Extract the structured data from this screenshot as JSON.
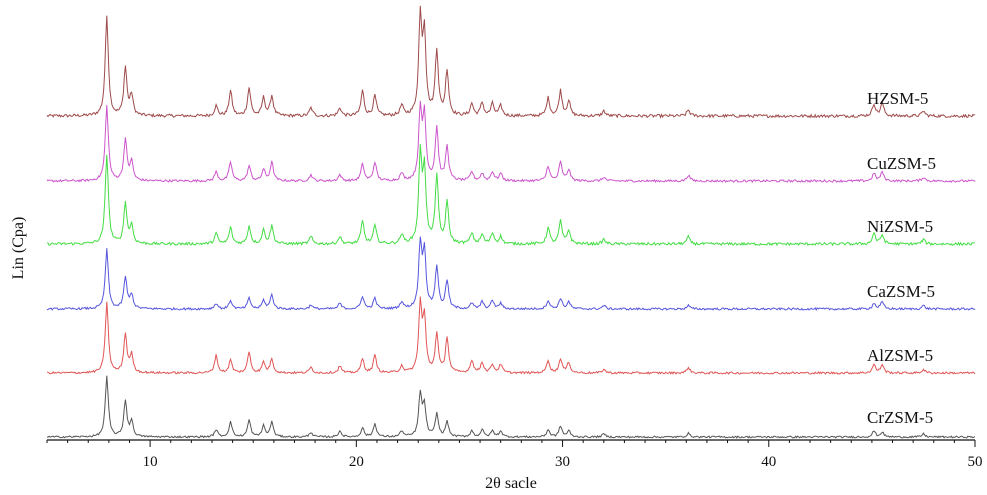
{
  "chart_data": {
    "type": "line",
    "title": "",
    "xlabel": "2θ sacle",
    "ylabel": "Lin (Cpa)",
    "xlim": [
      5,
      50
    ],
    "xticks": [
      10,
      20,
      30,
      40,
      50
    ],
    "yticks_shown": false,
    "grid": false,
    "legend": "inline labels at right end of each trace",
    "offset_stacked": true,
    "noise_level": 0.05,
    "series": [
      {
        "name": "HZSM-5",
        "color": "#9e4a4a",
        "baseline": 0.0,
        "peaks": [
          [
            7.9,
            1.0
          ],
          [
            8.8,
            0.48
          ],
          [
            9.1,
            0.2
          ],
          [
            13.2,
            0.1
          ],
          [
            13.9,
            0.25
          ],
          [
            14.8,
            0.28
          ],
          [
            15.5,
            0.18
          ],
          [
            15.9,
            0.2
          ],
          [
            17.8,
            0.08
          ],
          [
            19.2,
            0.08
          ],
          [
            20.3,
            0.25
          ],
          [
            20.9,
            0.2
          ],
          [
            22.2,
            0.1
          ],
          [
            23.1,
            0.95
          ],
          [
            23.3,
            0.8
          ],
          [
            23.9,
            0.65
          ],
          [
            24.4,
            0.45
          ],
          [
            25.6,
            0.12
          ],
          [
            26.1,
            0.13
          ],
          [
            26.6,
            0.12
          ],
          [
            27.0,
            0.1
          ],
          [
            29.3,
            0.18
          ],
          [
            29.9,
            0.25
          ],
          [
            30.3,
            0.15
          ],
          [
            32.0,
            0.05
          ],
          [
            36.1,
            0.06
          ],
          [
            45.1,
            0.12
          ],
          [
            45.5,
            0.13
          ],
          [
            47.5,
            0.05
          ]
        ]
      },
      {
        "name": "CuZSM-5",
        "color": "#cc55cc",
        "baseline": 0.0,
        "peaks": [
          [
            7.9,
            1.0
          ],
          [
            8.8,
            0.55
          ],
          [
            9.1,
            0.25
          ],
          [
            13.2,
            0.12
          ],
          [
            13.9,
            0.25
          ],
          [
            14.8,
            0.2
          ],
          [
            15.5,
            0.15
          ],
          [
            15.9,
            0.25
          ],
          [
            17.8,
            0.08
          ],
          [
            19.2,
            0.08
          ],
          [
            20.3,
            0.22
          ],
          [
            20.9,
            0.25
          ],
          [
            22.2,
            0.1
          ],
          [
            23.1,
            0.9
          ],
          [
            23.3,
            0.85
          ],
          [
            23.9,
            0.7
          ],
          [
            24.4,
            0.45
          ],
          [
            25.6,
            0.12
          ],
          [
            26.1,
            0.1
          ],
          [
            26.6,
            0.12
          ],
          [
            27.0,
            0.1
          ],
          [
            29.3,
            0.2
          ],
          [
            29.9,
            0.25
          ],
          [
            30.3,
            0.15
          ],
          [
            32.0,
            0.05
          ],
          [
            36.1,
            0.08
          ],
          [
            45.1,
            0.1
          ],
          [
            45.5,
            0.12
          ],
          [
            47.5,
            0.05
          ]
        ]
      },
      {
        "name": "NiZSM-5",
        "color": "#44dd44",
        "baseline": 0.0,
        "peaks": [
          [
            7.9,
            1.0
          ],
          [
            8.8,
            0.45
          ],
          [
            9.1,
            0.2
          ],
          [
            13.2,
            0.12
          ],
          [
            13.9,
            0.18
          ],
          [
            14.8,
            0.2
          ],
          [
            15.5,
            0.15
          ],
          [
            15.9,
            0.2
          ],
          [
            17.8,
            0.08
          ],
          [
            19.2,
            0.08
          ],
          [
            20.3,
            0.25
          ],
          [
            20.9,
            0.2
          ],
          [
            22.2,
            0.1
          ],
          [
            23.1,
            0.95
          ],
          [
            23.3,
            0.8
          ],
          [
            23.9,
            0.75
          ],
          [
            24.4,
            0.45
          ],
          [
            25.6,
            0.12
          ],
          [
            26.1,
            0.1
          ],
          [
            26.6,
            0.12
          ],
          [
            27.0,
            0.08
          ],
          [
            29.3,
            0.18
          ],
          [
            29.9,
            0.25
          ],
          [
            30.3,
            0.15
          ],
          [
            32.0,
            0.05
          ],
          [
            36.1,
            0.08
          ],
          [
            45.1,
            0.12
          ],
          [
            45.5,
            0.1
          ],
          [
            47.5,
            0.05
          ]
        ]
      },
      {
        "name": "CaZSM-5",
        "color": "#5555dd",
        "baseline": 0.0,
        "peaks": [
          [
            7.9,
            0.85
          ],
          [
            8.8,
            0.45
          ],
          [
            9.1,
            0.2
          ],
          [
            13.2,
            0.08
          ],
          [
            13.9,
            0.12
          ],
          [
            14.8,
            0.15
          ],
          [
            15.5,
            0.12
          ],
          [
            15.9,
            0.2
          ],
          [
            17.8,
            0.06
          ],
          [
            19.2,
            0.08
          ],
          [
            20.3,
            0.18
          ],
          [
            20.9,
            0.15
          ],
          [
            22.2,
            0.1
          ],
          [
            23.1,
            0.9
          ],
          [
            23.3,
            0.8
          ],
          [
            23.9,
            0.6
          ],
          [
            24.4,
            0.4
          ],
          [
            25.6,
            0.08
          ],
          [
            26.1,
            0.1
          ],
          [
            26.6,
            0.12
          ],
          [
            27.0,
            0.08
          ],
          [
            29.3,
            0.12
          ],
          [
            29.9,
            0.15
          ],
          [
            30.3,
            0.1
          ],
          [
            32.0,
            0.05
          ],
          [
            36.1,
            0.05
          ],
          [
            45.1,
            0.08
          ],
          [
            45.5,
            0.1
          ],
          [
            47.5,
            0.05
          ]
        ]
      },
      {
        "name": "AlZSM-5",
        "color": "#e05555",
        "baseline": 0.0,
        "peaks": [
          [
            7.9,
            1.0
          ],
          [
            8.8,
            0.55
          ],
          [
            9.1,
            0.25
          ],
          [
            13.2,
            0.25
          ],
          [
            13.9,
            0.18
          ],
          [
            14.8,
            0.3
          ],
          [
            15.5,
            0.15
          ],
          [
            15.9,
            0.2
          ],
          [
            17.8,
            0.08
          ],
          [
            19.2,
            0.1
          ],
          [
            20.3,
            0.2
          ],
          [
            20.9,
            0.25
          ],
          [
            22.2,
            0.1
          ],
          [
            23.1,
            0.95
          ],
          [
            23.3,
            0.75
          ],
          [
            23.9,
            0.55
          ],
          [
            24.4,
            0.5
          ],
          [
            25.6,
            0.18
          ],
          [
            26.1,
            0.15
          ],
          [
            26.6,
            0.12
          ],
          [
            27.0,
            0.12
          ],
          [
            29.3,
            0.18
          ],
          [
            29.9,
            0.2
          ],
          [
            30.3,
            0.15
          ],
          [
            32.0,
            0.05
          ],
          [
            36.1,
            0.08
          ],
          [
            45.1,
            0.12
          ],
          [
            45.5,
            0.12
          ],
          [
            47.5,
            0.05
          ]
        ]
      },
      {
        "name": "CrZSM-5",
        "color": "#555555",
        "baseline": 0.0,
        "peaks": [
          [
            7.9,
            1.0
          ],
          [
            8.8,
            0.6
          ],
          [
            9.1,
            0.25
          ],
          [
            13.2,
            0.12
          ],
          [
            13.9,
            0.25
          ],
          [
            14.8,
            0.28
          ],
          [
            15.5,
            0.18
          ],
          [
            15.9,
            0.25
          ],
          [
            17.8,
            0.08
          ],
          [
            19.2,
            0.1
          ],
          [
            20.3,
            0.15
          ],
          [
            20.9,
            0.22
          ],
          [
            22.2,
            0.1
          ],
          [
            23.1,
            0.7
          ],
          [
            23.3,
            0.5
          ],
          [
            23.9,
            0.38
          ],
          [
            24.4,
            0.25
          ],
          [
            25.6,
            0.1
          ],
          [
            26.1,
            0.12
          ],
          [
            26.6,
            0.1
          ],
          [
            27.0,
            0.1
          ],
          [
            29.3,
            0.12
          ],
          [
            29.9,
            0.18
          ],
          [
            30.3,
            0.1
          ],
          [
            32.0,
            0.05
          ],
          [
            36.1,
            0.06
          ],
          [
            45.1,
            0.1
          ],
          [
            45.5,
            0.08
          ],
          [
            47.5,
            0.05
          ]
        ]
      }
    ]
  }
}
